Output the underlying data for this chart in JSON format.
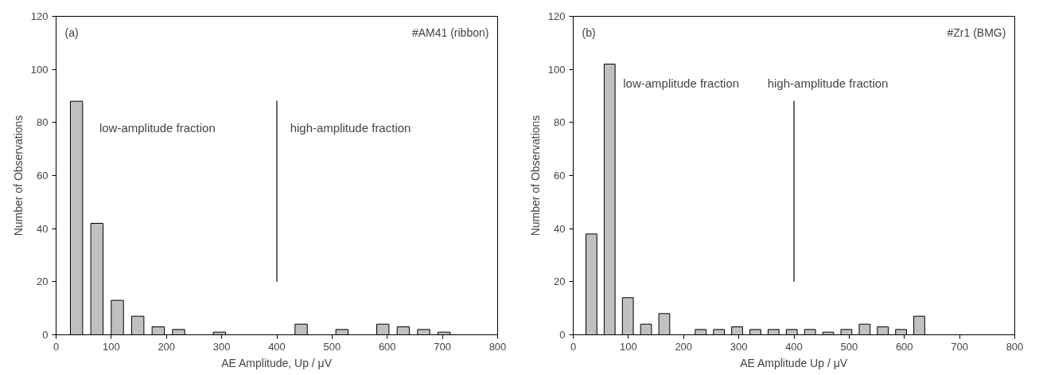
{
  "chart_data": [
    {
      "type": "bar",
      "title": "(a)",
      "subtitle": "#AM41 (ribbon)",
      "xlabel": "AE Amplitude, Up / μV",
      "ylabel": "Number of Observations",
      "x": [
        37,
        74,
        111,
        148,
        185,
        222,
        296,
        444,
        518,
        592,
        629,
        666,
        703
      ],
      "values": [
        88,
        42,
        13,
        7,
        3,
        2,
        1,
        4,
        2,
        4,
        3,
        2,
        1
      ],
      "color": "#c0c0c0",
      "xlim": [
        0,
        800
      ],
      "xticks": [
        0,
        100,
        200,
        300,
        400,
        500,
        600,
        700,
        800
      ],
      "ylim": [
        0,
        120
      ],
      "yticks": [
        0,
        20,
        40,
        60,
        80,
        100,
        120
      ],
      "grid": false,
      "ref_lines": [
        {
          "axis": "x",
          "value": 400,
          "color": "#000000"
        }
      ],
      "annotations": [
        "low-amplitude fraction",
        "high-amplitude fraction"
      ]
    },
    {
      "type": "bar",
      "title": "(b)",
      "subtitle": "#Zr1 (BMG)",
      "xlabel": "AE Amplitude Up / μV",
      "ylabel": "Number of Observations",
      "x": [
        33,
        66,
        99,
        132,
        165,
        231,
        264,
        297,
        330,
        363,
        396,
        429,
        462,
        495,
        528,
        561,
        594,
        627
      ],
      "values": [
        38,
        102,
        14,
        4,
        8,
        2,
        2,
        3,
        2,
        2,
        2,
        2,
        1,
        2,
        4,
        3,
        2,
        7
      ],
      "color": "#c0c0c0",
      "xlim": [
        0,
        800
      ],
      "xticks": [
        0,
        100,
        200,
        300,
        400,
        500,
        600,
        700,
        800
      ],
      "ylim": [
        0,
        120
      ],
      "yticks": [
        0,
        20,
        40,
        60,
        80,
        100,
        120
      ],
      "grid": false,
      "ref_lines": [
        {
          "axis": "x",
          "value": 400,
          "color": "#000000"
        }
      ],
      "annotations": [
        "low-amplitude fraction",
        "high-amplitude fraction"
      ]
    }
  ]
}
